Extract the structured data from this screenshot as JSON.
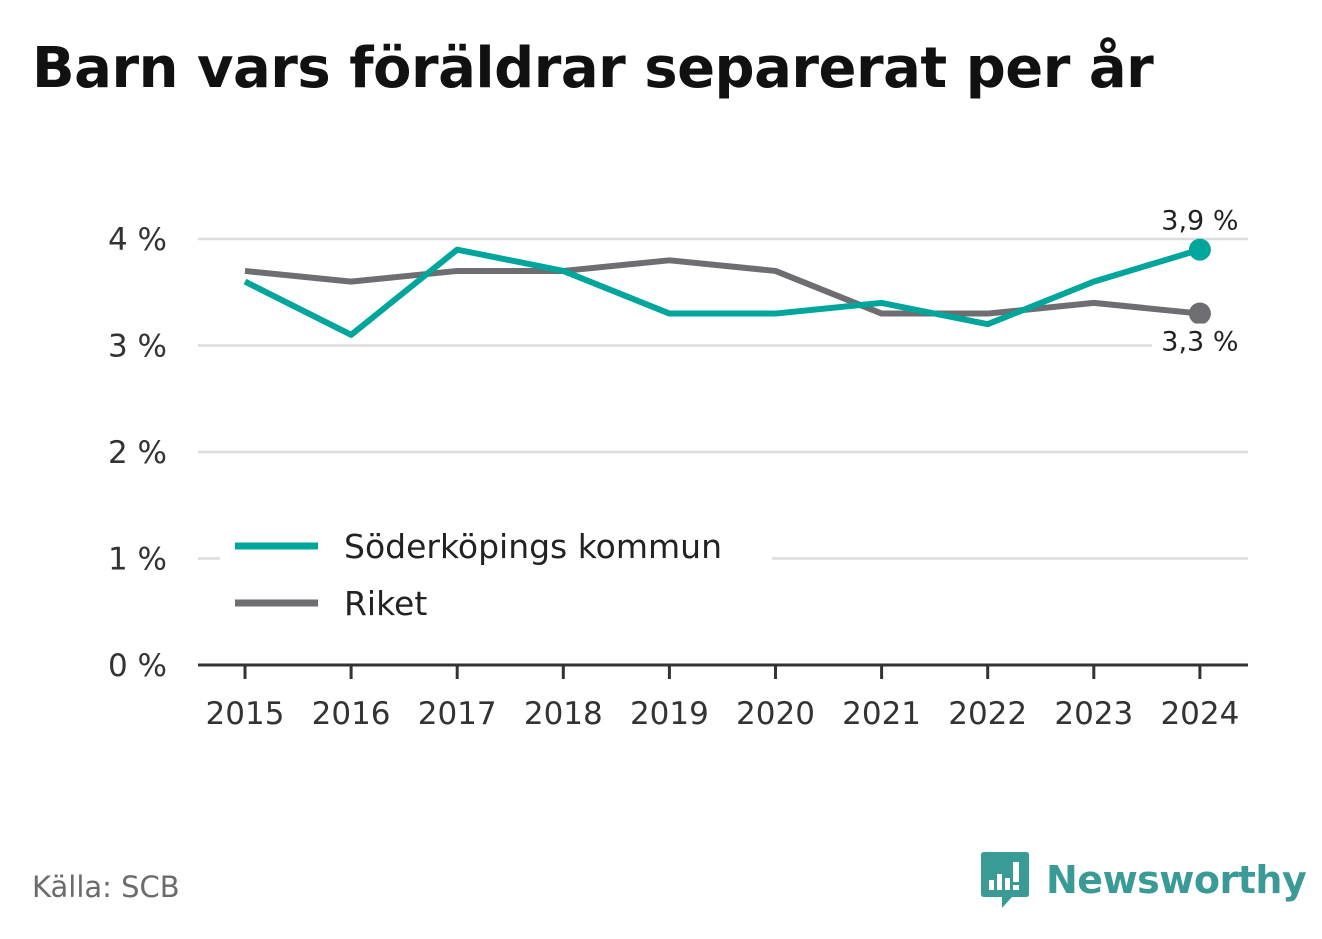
{
  "title": "Barn vars föräldrar separerat per år",
  "source": "Källa: SCB",
  "brand": "Newsworthy",
  "chart_data": {
    "type": "line",
    "title": "Barn vars föräldrar separerat per år",
    "x": [
      "2015",
      "2016",
      "2017",
      "2018",
      "2019",
      "2020",
      "2021",
      "2022",
      "2023",
      "2024"
    ],
    "ylim": [
      0,
      4
    ],
    "yticks": [
      0,
      1,
      2,
      3,
      4
    ],
    "ytick_labels": [
      "0 %",
      "1 %",
      "2 %",
      "3 %",
      "4 %"
    ],
    "grid": true,
    "legend_position": "bottom-left",
    "series": [
      {
        "name": "Söderköpings kommun",
        "color": "#00a59b",
        "values": [
          3.6,
          3.1,
          3.9,
          3.7,
          3.3,
          3.3,
          3.4,
          3.2,
          3.6,
          3.9
        ],
        "end_label": "3,9 %"
      },
      {
        "name": "Riket",
        "color": "#6d6d72",
        "values": [
          3.7,
          3.6,
          3.7,
          3.7,
          3.8,
          3.7,
          3.3,
          3.3,
          3.4,
          3.3
        ],
        "end_label": "3,3 %"
      }
    ]
  }
}
